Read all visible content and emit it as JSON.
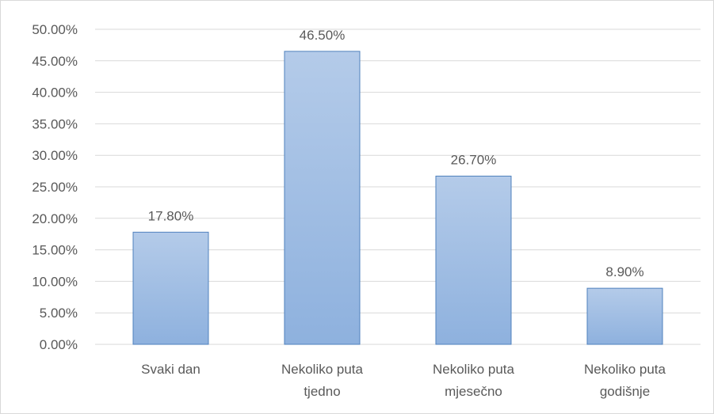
{
  "chart_data": {
    "type": "bar",
    "categories": [
      [
        "Svaki dan"
      ],
      [
        "Nekoliko puta",
        "tjedno"
      ],
      [
        "Nekoliko puta",
        "mjesečno"
      ],
      [
        "Nekoliko puta",
        "godišnje"
      ]
    ],
    "values": [
      17.8,
      46.5,
      26.7,
      8.9
    ],
    "data_labels": [
      "17.80%",
      "46.50%",
      "26.70%",
      "8.90%"
    ],
    "y_ticks": [
      "0.00%",
      "5.00%",
      "10.00%",
      "15.00%",
      "20.00%",
      "25.00%",
      "30.00%",
      "35.00%",
      "40.00%",
      "45.00%",
      "50.00%"
    ],
    "ylim": [
      0,
      50
    ],
    "grid": true,
    "legend": "none",
    "title": "",
    "xlabel": "",
    "ylabel": "",
    "colors": {
      "bar_top": "#b4cbe9",
      "bar_bottom": "#8eb1de",
      "bar_edge": "#4f81bd",
      "grid": "#d9d9d9",
      "text": "#595959"
    }
  }
}
